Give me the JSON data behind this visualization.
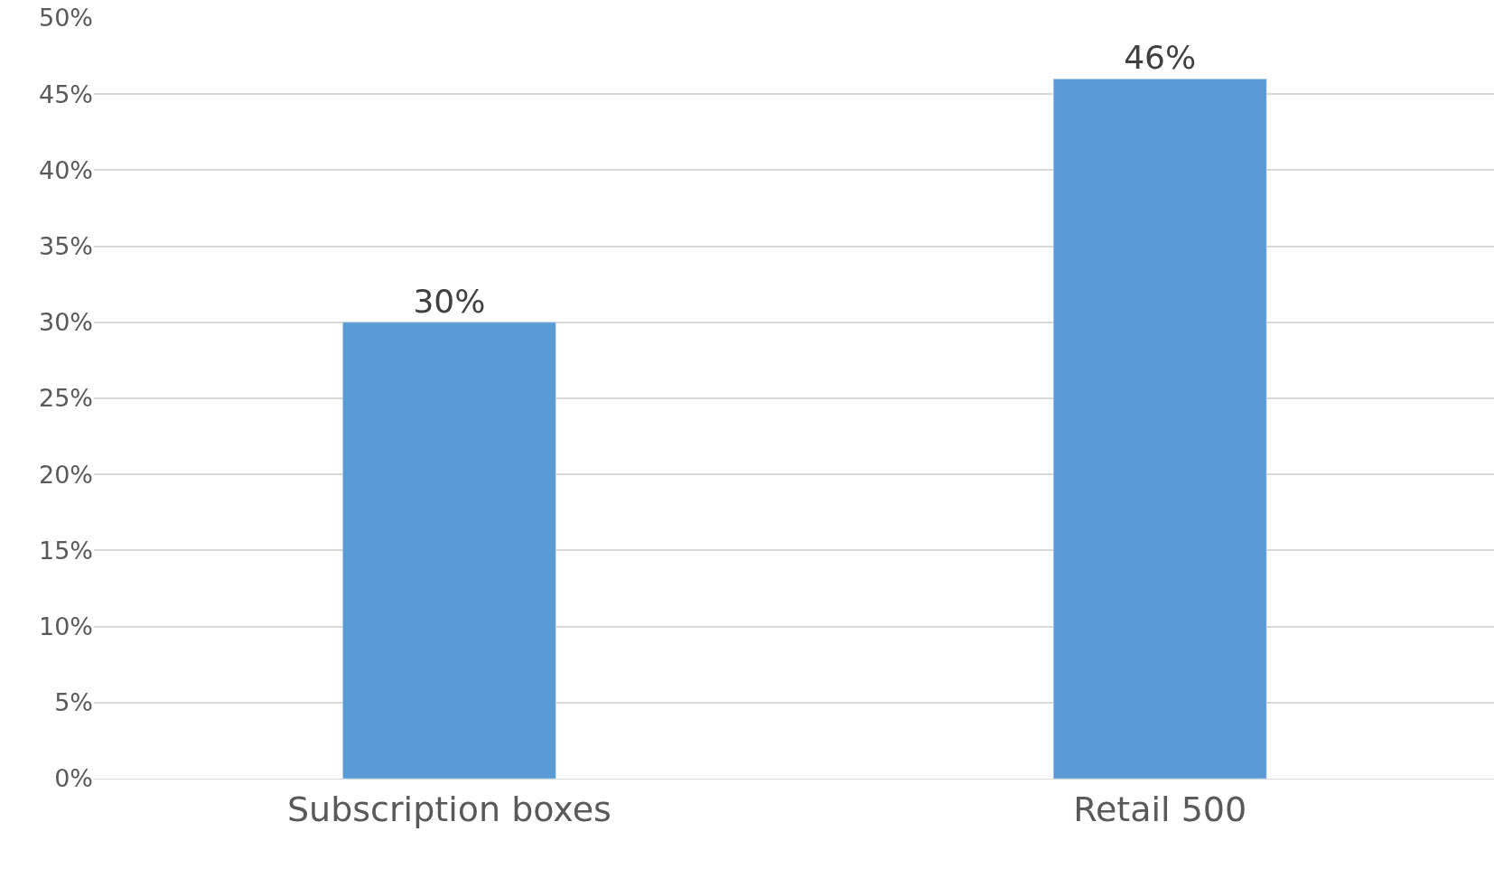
{
  "chart_data": {
    "type": "bar",
    "categories": [
      "Subscription boxes",
      "Retail 500"
    ],
    "values": [
      30,
      46
    ],
    "color": "#5b9bd5",
    "data_labels": true,
    "value_labels": [
      "30%",
      "46%"
    ],
    "ylim": [
      0,
      50
    ],
    "yticks": [
      {
        "value": 0,
        "label": "0%"
      },
      {
        "value": 5,
        "label": "5%"
      },
      {
        "value": 10,
        "label": "10%"
      },
      {
        "value": 15,
        "label": "15%"
      },
      {
        "value": 20,
        "label": "20%"
      },
      {
        "value": 25,
        "label": "25%"
      },
      {
        "value": 30,
        "label": "30%"
      },
      {
        "value": 35,
        "label": "35%"
      },
      {
        "value": 40,
        "label": "40%"
      },
      {
        "value": 45,
        "label": "45%"
      },
      {
        "value": 50,
        "label": "50%"
      }
    ],
    "grid": "y",
    "legend": false
  }
}
